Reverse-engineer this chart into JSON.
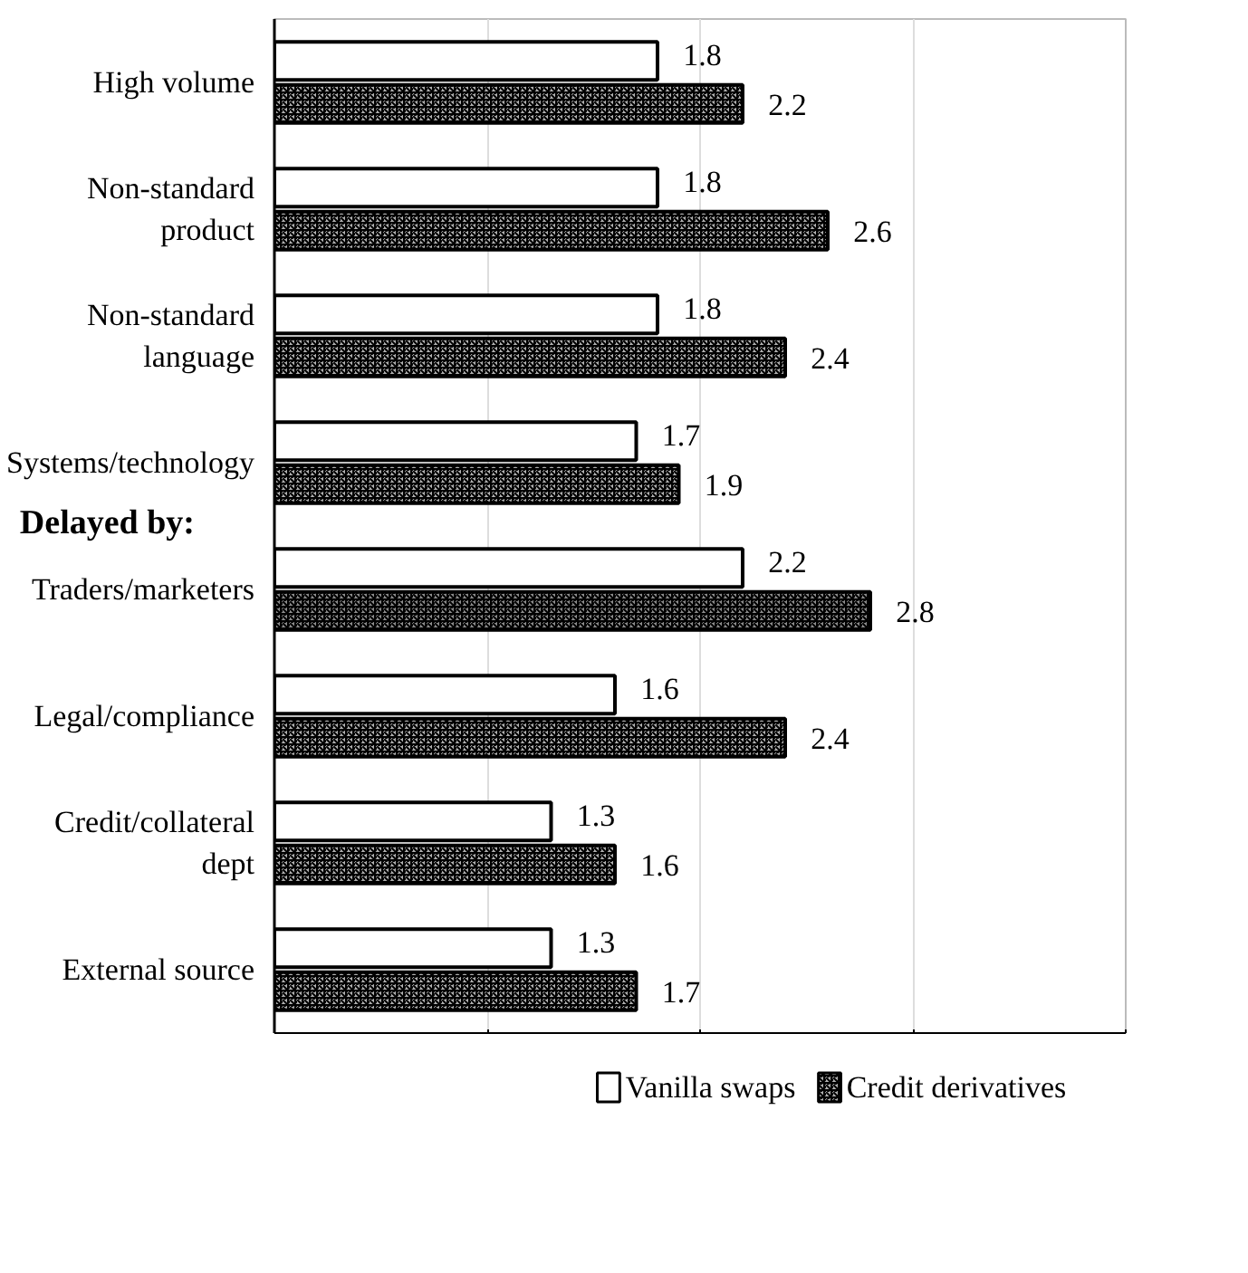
{
  "chart_data": {
    "type": "bar",
    "orientation": "horizontal",
    "categories": [
      "High volume",
      "Non-standard\nproduct",
      "Non-standard\nlanguage",
      "Systems/technology",
      "Traders/marketers",
      "Legal/compliance",
      "Credit/collateral\ndept",
      "External source"
    ],
    "series": [
      {
        "name": "Vanilla swaps",
        "color": "#ffffff",
        "values": [
          1.8,
          1.8,
          1.8,
          1.7,
          2.2,
          1.6,
          1.3,
          1.3
        ]
      },
      {
        "name": "Credit derivatives",
        "color": "#b0b0b0",
        "colors": [
          "#b0b0b0",
          "#b0b0b0",
          "#b0b0b0",
          "#b0b0b0",
          "#8c8c8c",
          "#b0b0b0",
          "#b0b0b0",
          "#b0b0b0"
        ],
        "values": [
          2.2,
          2.6,
          2.4,
          1.9,
          2.8,
          2.4,
          1.6,
          1.7
        ]
      }
    ],
    "xlim": [
      0,
      4
    ],
    "xticks": [
      {
        "value": 0,
        "label": null
      },
      {
        "value": 1,
        "label": null
      },
      {
        "value": 2,
        "label": null
      },
      {
        "value": 3,
        "label": null
      },
      {
        "value": 4,
        "label": null
      }
    ],
    "tick_labels": "y",
    "grid": "x",
    "legend": "bottom",
    "data_labels": true,
    "annotations": [
      "Delayed by:"
    ]
  }
}
